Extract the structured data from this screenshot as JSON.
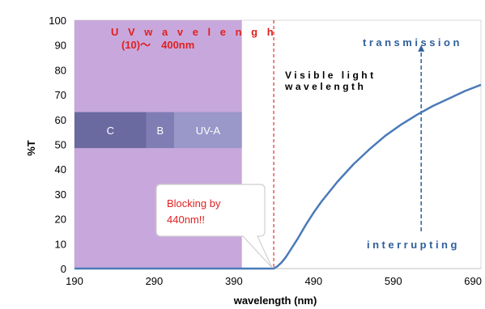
{
  "chart_data": {
    "type": "line",
    "xlabel": "wavelength (nm)",
    "ylabel": "%T",
    "xlim": [
      190,
      700
    ],
    "ylim": [
      0,
      100
    ],
    "x_ticks": [
      190,
      290,
      390,
      490,
      590,
      690
    ],
    "y_ticks": [
      0,
      10,
      20,
      30,
      40,
      50,
      60,
      70,
      80,
      90,
      100
    ],
    "grid": false,
    "series": [
      {
        "color": "#4a7ab8",
        "x": [
          190,
          420,
          430,
          440,
          445,
          450,
          455,
          460,
          470,
          480,
          490,
          500,
          520,
          540,
          560,
          580,
          600,
          620,
          640,
          660,
          680,
          700
        ],
        "y": [
          0,
          0,
          0,
          0,
          1,
          2.5,
          4.5,
          7,
          12,
          17.5,
          22.5,
          27,
          35,
          42,
          48,
          53.5,
          58,
          62,
          65.5,
          68.5,
          71.5,
          74
        ]
      }
    ],
    "uv_region": {
      "x": [
        190,
        400
      ],
      "color": "#c8a8dc"
    },
    "cutoff_line": {
      "x": 440,
      "color": "#e03030"
    },
    "bands": [
      {
        "label": "C",
        "x": [
          190,
          280
        ],
        "y": [
          48.5,
          63
        ],
        "color": "#6a6aa0"
      },
      {
        "label": "B",
        "x": [
          280,
          315
        ],
        "y": [
          48.5,
          63
        ],
        "color": "#7e7eb4"
      },
      {
        "label": "UV-A",
        "x": [
          315,
          400
        ],
        "y": [
          48.5,
          63
        ],
        "color": "#9a98c8"
      }
    ],
    "annotations": {
      "uv_title": "U V  w a v e l e n g h",
      "uv_range": "(10)～　400nm",
      "visible_line1": "Visible light",
      "visible_line2": "wavelength",
      "transmission": "transmission",
      "interrupting": "interrupting",
      "callout_line1": "Blocking by",
      "callout_line2": "440nm!!"
    },
    "arrow": {
      "x": 625,
      "y_from": 15,
      "y_to": 90,
      "color": "#2e5f9a"
    }
  }
}
